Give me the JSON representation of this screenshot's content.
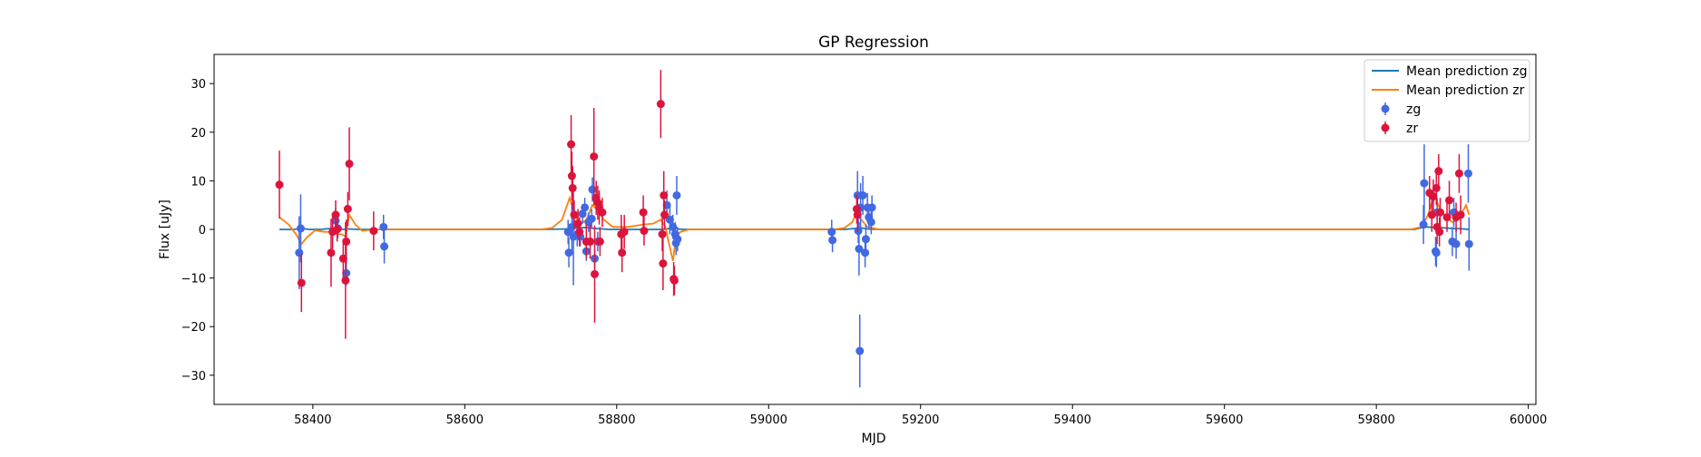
{
  "chart_data": {
    "type": "scatter",
    "title": "GP Regression",
    "xlabel": "MJD",
    "ylabel": "Flux [uJy]",
    "xlim": [
      58270,
      60010
    ],
    "ylim": [
      -36,
      36
    ],
    "xticks": [
      58400,
      58600,
      58800,
      59000,
      59200,
      59400,
      59600,
      59800,
      60000
    ],
    "yticks": [
      -30,
      -20,
      -10,
      0,
      10,
      20,
      30
    ],
    "grid": false,
    "legend_position": "top-right",
    "legend": [
      "Mean prediction zg",
      "Mean prediction zr",
      "zg",
      "zr"
    ],
    "colors": {
      "zg_line": "#1f77b4",
      "zr_line": "#ff7f0e",
      "zg_points": "#4169e1",
      "zr_points": "#dc143c"
    },
    "series": [
      {
        "name": "zg",
        "kind": "errorbar",
        "points": [
          [
            58382,
            -4.8,
            7.5
          ],
          [
            58384,
            0.2,
            7
          ],
          [
            58430,
            1.8,
            2.5
          ],
          [
            58433,
            0.2,
            2
          ],
          [
            58444,
            -9,
            2.5
          ],
          [
            58493,
            0.5,
            2.5
          ],
          [
            58494,
            -3.5,
            3.5
          ],
          [
            58736,
            -0.5,
            2.5
          ],
          [
            58737,
            -4.8,
            3
          ],
          [
            58741,
            0.5,
            5
          ],
          [
            58743,
            -1.5,
            10
          ],
          [
            58748,
            -1,
            2.5
          ],
          [
            58752,
            -1.5,
            2
          ],
          [
            58755,
            3.2,
            2
          ],
          [
            58758,
            4.5,
            2
          ],
          [
            58760,
            -4.5,
            2
          ],
          [
            58763,
            1.5,
            2
          ],
          [
            58767,
            2.2,
            2
          ],
          [
            58768,
            8.2,
            2.5
          ],
          [
            58771,
            -6,
            2
          ],
          [
            58775,
            -2.5,
            2
          ],
          [
            58866,
            5,
            3
          ],
          [
            58870,
            2,
            3
          ],
          [
            58874,
            0.5,
            2.5
          ],
          [
            58877,
            -1,
            2.5
          ],
          [
            58878,
            -2.8,
            2.5
          ],
          [
            58879,
            7,
            4
          ],
          [
            58880,
            -2,
            2.5
          ],
          [
            59083,
            -0.5,
            2.5
          ],
          [
            59084,
            -2.2,
            2.5
          ],
          [
            59117,
            7,
            5
          ],
          [
            59118,
            -0.3,
            2.5
          ],
          [
            59119,
            -4,
            5.5
          ],
          [
            59120,
            -25,
            7.5
          ],
          [
            59121,
            4.5,
            5
          ],
          [
            59124,
            7,
            4
          ],
          [
            59127,
            -4.8,
            3
          ],
          [
            59128,
            -2,
            3
          ],
          [
            59130,
            4.5,
            3
          ],
          [
            59132,
            2.5,
            2.5
          ],
          [
            59135,
            1.5,
            2.5
          ],
          [
            59136,
            4.5,
            2.5
          ],
          [
            59862,
            1,
            4
          ],
          [
            59863,
            9.5,
            8
          ],
          [
            59878,
            -4.5,
            3
          ],
          [
            59879,
            -4.8,
            3
          ],
          [
            59880,
            3.5,
            3
          ],
          [
            59900,
            -2.5,
            3
          ],
          [
            59902,
            3.5,
            3
          ],
          [
            59905,
            -3,
            3
          ],
          [
            59921,
            11.5,
            6
          ],
          [
            59922,
            -3,
            5.5
          ]
        ]
      },
      {
        "name": "zr",
        "kind": "errorbar",
        "points": [
          [
            58356,
            9.2,
            7
          ],
          [
            58385,
            -11,
            6
          ],
          [
            58424,
            -4.8,
            7
          ],
          [
            58426,
            -0.5,
            3.5
          ],
          [
            58430,
            3,
            3
          ],
          [
            58432,
            0,
            2.5
          ],
          [
            58440,
            -6,
            4
          ],
          [
            58443,
            -10.5,
            12
          ],
          [
            58444,
            -2.5,
            4.5
          ],
          [
            58446,
            4.2,
            3.5
          ],
          [
            58448,
            13.5,
            7.5
          ],
          [
            58480,
            -0.3,
            4
          ],
          [
            58740,
            17.5,
            6
          ],
          [
            58741,
            11,
            5
          ],
          [
            58742,
            8.5,
            4.5
          ],
          [
            58744,
            3,
            3
          ],
          [
            58749,
            1.2,
            3
          ],
          [
            58751,
            -0.5,
            3
          ],
          [
            58760,
            -2.5,
            3.5
          ],
          [
            58765,
            -2.5,
            3.5
          ],
          [
            58770,
            15,
            10
          ],
          [
            58771,
            -9.2,
            10
          ],
          [
            58773,
            6.5,
            3.5
          ],
          [
            58775,
            5.5,
            3.5
          ],
          [
            58777,
            4.5,
            3.5
          ],
          [
            58778,
            -2.5,
            3
          ],
          [
            58781,
            3.5,
            3
          ],
          [
            58806,
            -1,
            4
          ],
          [
            58807,
            -4.8,
            4
          ],
          [
            58810,
            -0.5,
            3.5
          ],
          [
            58835,
            3.5,
            3.5
          ],
          [
            58836,
            -0.3,
            3
          ],
          [
            58858,
            25.8,
            7
          ],
          [
            58860,
            -1,
            3.5
          ],
          [
            58861,
            -7,
            5.5
          ],
          [
            58862,
            7,
            5
          ],
          [
            58863,
            3,
            3
          ],
          [
            58875,
            -10.2,
            3.5
          ],
          [
            58876,
            -10.5,
            3
          ],
          [
            59116,
            4.2,
            3
          ],
          [
            59117,
            3,
            3.5
          ],
          [
            59870,
            7.5,
            3.5
          ],
          [
            59873,
            3,
            3.5
          ],
          [
            59875,
            6.8,
            3.5
          ],
          [
            59879,
            8.5,
            3.5
          ],
          [
            59880,
            0.5,
            3.5
          ],
          [
            59882,
            12,
            3.5
          ],
          [
            59883,
            -0.5,
            3
          ],
          [
            59884,
            3.5,
            3
          ],
          [
            59893,
            2.5,
            3
          ],
          [
            59896,
            6,
            4
          ],
          [
            59905,
            2.5,
            3
          ],
          [
            59909,
            11.5,
            4
          ],
          [
            59911,
            3,
            4
          ]
        ]
      },
      {
        "name": "Mean prediction zg",
        "kind": "line",
        "x": [
          58356,
          58375,
          58385,
          58395,
          58410,
          58425,
          58440,
          58448,
          58460,
          58480,
          58500,
          58700,
          58735,
          58745,
          58760,
          58770,
          58790,
          58860,
          58872,
          58880,
          58890,
          59100,
          59115,
          59122,
          59130,
          59145,
          59850,
          59865,
          59880,
          59900,
          59915,
          59922
        ],
        "y": [
          0,
          0,
          0.2,
          0,
          0,
          0.2,
          0,
          0.1,
          0,
          0,
          0,
          0,
          0.1,
          0.3,
          0.4,
          0.2,
          0,
          0,
          0.2,
          0.1,
          0,
          0,
          0.2,
          0.3,
          0.1,
          0,
          0,
          0.5,
          0.4,
          0.2,
          0.1,
          0
        ]
      },
      {
        "name": "Mean prediction zr",
        "kind": "line",
        "x": [
          58356,
          58368,
          58378,
          58385,
          58393,
          58403,
          58415,
          58425,
          58432,
          58438,
          58443,
          58448,
          58456,
          58465,
          58480,
          58500,
          58700,
          58715,
          58728,
          58738,
          58745,
          58752,
          58760,
          58768,
          58775,
          58783,
          58795,
          58815,
          58835,
          58848,
          58858,
          58864,
          58869,
          58874,
          58878,
          58884,
          58895,
          59085,
          59100,
          59110,
          59116,
          59122,
          59130,
          59145,
          59845,
          59860,
          59868,
          59873,
          59878,
          59884,
          59892,
          59900,
          59907,
          59913,
          59918,
          59922
        ],
        "y": [
          2.5,
          1,
          -1,
          -3,
          -1.5,
          -0.2,
          -0.5,
          -0.5,
          -1,
          -1,
          -1.5,
          3,
          1,
          -0.3,
          0,
          0,
          0,
          0.3,
          2,
          6.5,
          3,
          1,
          2,
          5,
          4,
          2,
          0.5,
          0.5,
          1,
          1.2,
          2,
          0.5,
          -3,
          -6.5,
          -1.5,
          -0.5,
          0,
          0,
          0.3,
          1.5,
          3.5,
          2,
          0.5,
          0,
          0,
          0.5,
          3,
          5.5,
          6.5,
          4,
          2.5,
          1.5,
          2,
          3.5,
          5,
          3
        ]
      }
    ]
  }
}
